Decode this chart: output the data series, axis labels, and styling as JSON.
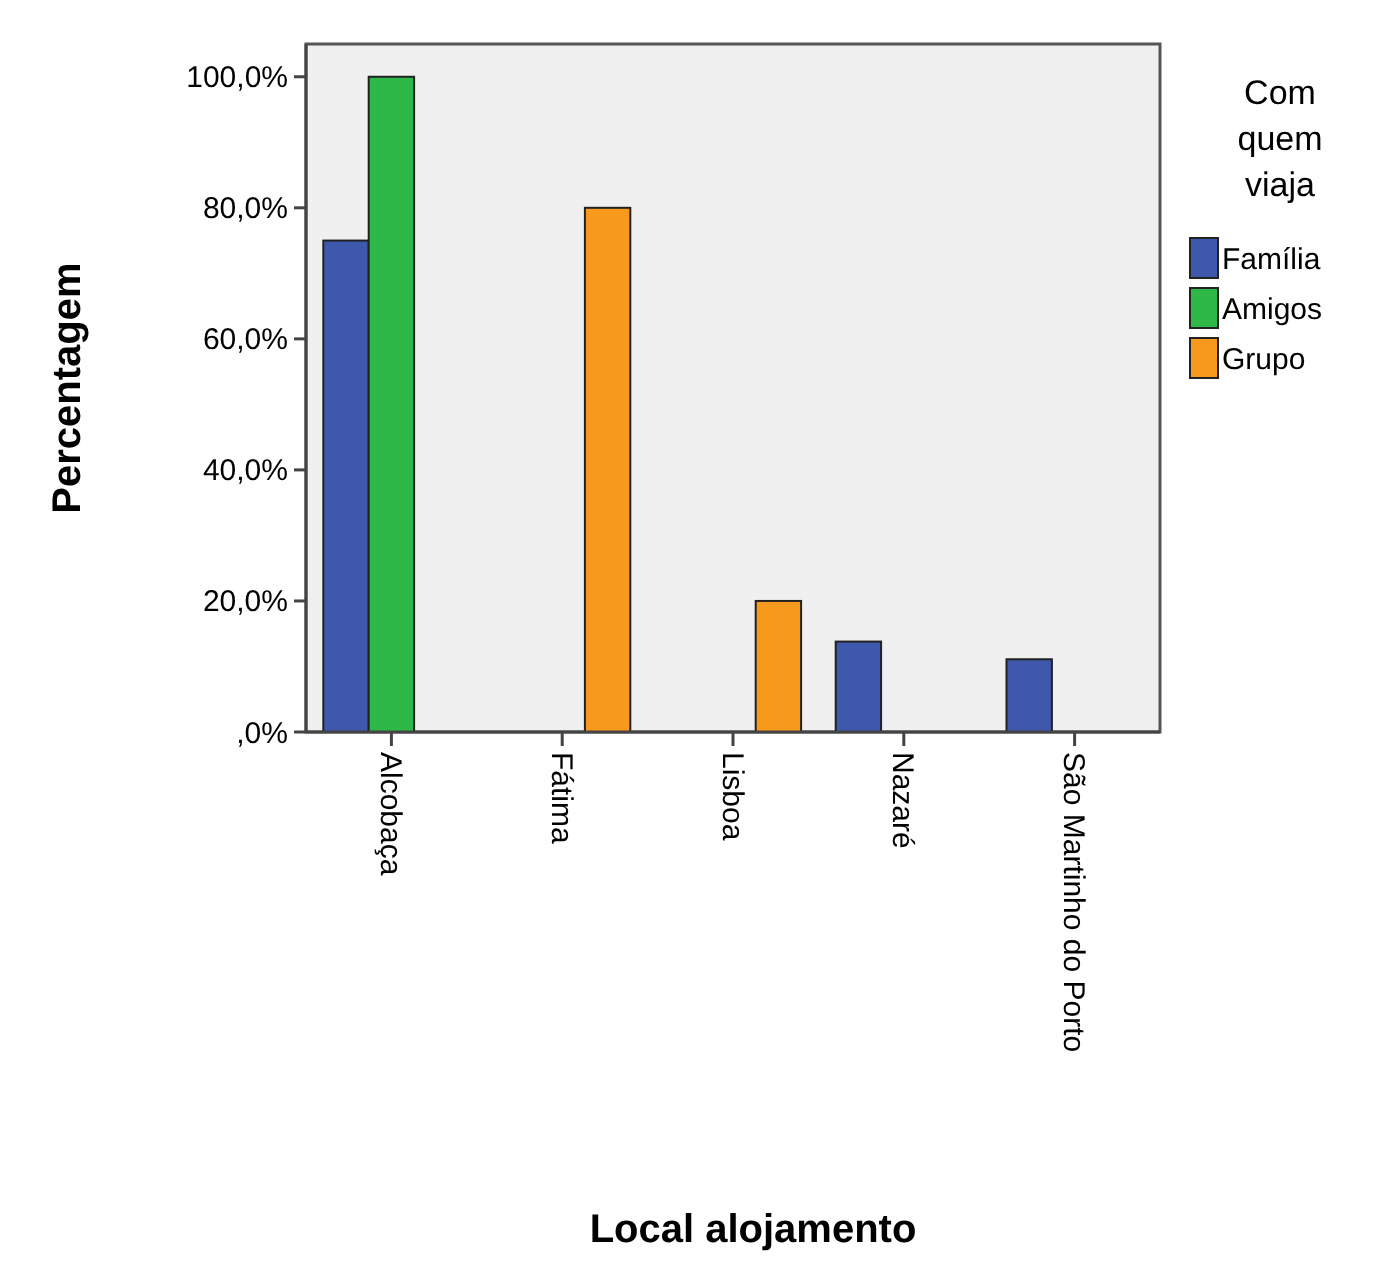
{
  "chart_data": {
    "type": "bar",
    "xlabel": "Local alojamento",
    "ylabel": "Percentagem",
    "legend_title": "Com quem viaja",
    "categories": [
      "Alcobaça",
      "Fátima",
      "Lisboa",
      "Nazaré",
      "São Martinho do Porto"
    ],
    "series": [
      {
        "name": "Família",
        "color": "#3e58ac",
        "values": [
          75,
          0,
          0,
          13.8,
          11.1
        ]
      },
      {
        "name": "Amigos",
        "color": "#2eb848",
        "values": [
          100,
          0,
          0,
          0,
          0
        ]
      },
      {
        "name": "Grupo",
        "color": "#f7991d",
        "values": [
          0,
          80,
          20,
          0,
          0
        ]
      }
    ],
    "ylim": [
      0,
      105
    ],
    "yticks": [
      {
        "value": 0,
        "label": ",0%"
      },
      {
        "value": 20,
        "label": "20,0%"
      },
      {
        "value": 40,
        "label": "40,0%"
      },
      {
        "value": 60,
        "label": "60,0%"
      },
      {
        "value": 80,
        "label": "80,0%"
      },
      {
        "value": 100,
        "label": "100,0%"
      }
    ],
    "grid": false,
    "legend": "right"
  }
}
